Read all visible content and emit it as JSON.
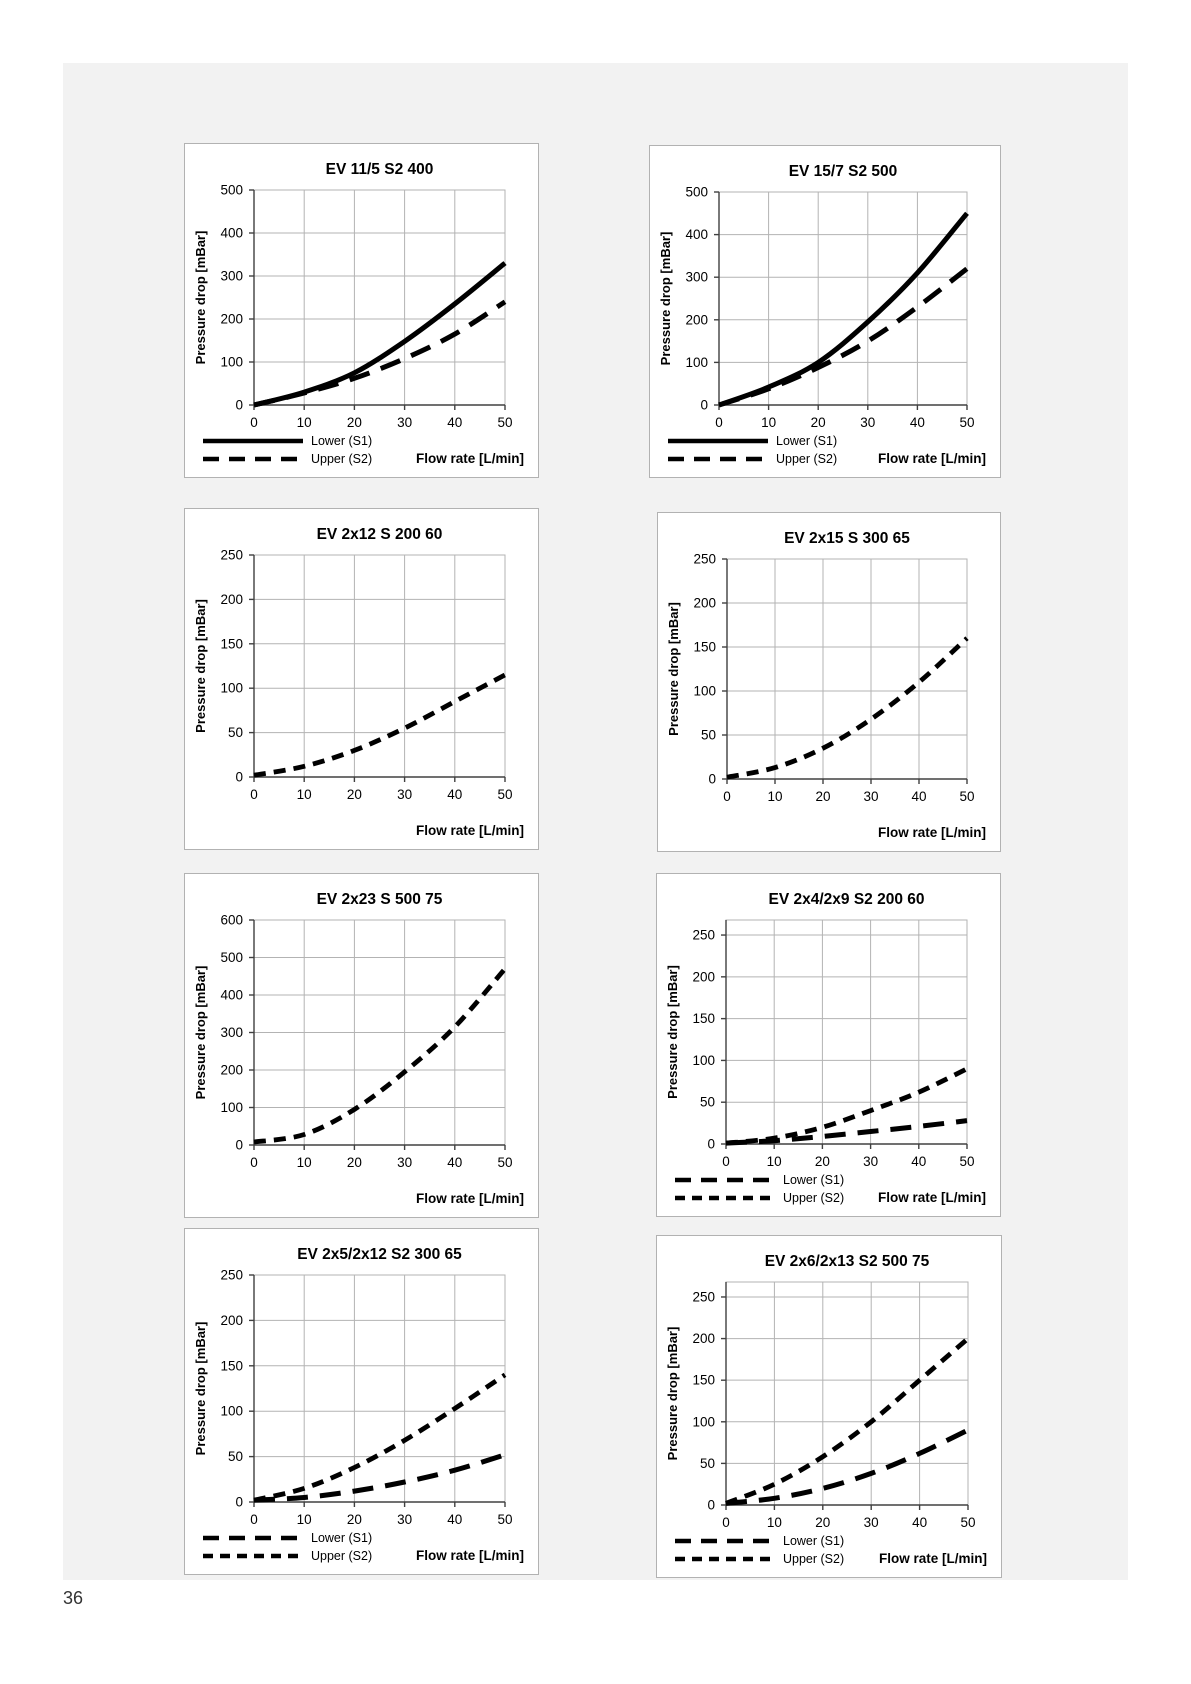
{
  "page": {
    "number": "36"
  },
  "style": {
    "curve_color": "#000000",
    "grid_color": "#b3b3b3",
    "axis_color": "#404040",
    "panel_bg": "#f2f2f2"
  },
  "chart_data": [
    {
      "type": "line",
      "title": "EV 11/5 S2 400",
      "xlabel": "Flow rate [L/min]",
      "ylabel": "Pressure drop [mBar]",
      "xlim": [
        0,
        50
      ],
      "ylim": [
        0,
        500
      ],
      "xticks": [
        0,
        10,
        20,
        30,
        40,
        50
      ],
      "yticks": [
        0,
        100,
        200,
        300,
        400,
        500
      ],
      "grid": true,
      "legend": true,
      "legend_position": "bottom-left",
      "x": [
        0,
        10,
        20,
        30,
        40,
        50
      ],
      "series": [
        {
          "name": "Lower (S1)",
          "style": "solid",
          "values": [
            0,
            30,
            75,
            148,
            235,
            330
          ]
        },
        {
          "name": "Upper (S2)",
          "style": "longdash",
          "values": [
            0,
            28,
            62,
            108,
            165,
            240
          ]
        }
      ]
    },
    {
      "type": "line",
      "title": "EV 15/7 S2 500",
      "xlabel": "Flow rate [L/min]",
      "ylabel": "Pressure drop [mBar]",
      "xlim": [
        0,
        50
      ],
      "ylim": [
        0,
        500
      ],
      "xticks": [
        0,
        10,
        20,
        30,
        40,
        50
      ],
      "yticks": [
        0,
        100,
        200,
        300,
        400,
        500
      ],
      "grid": true,
      "legend": true,
      "legend_position": "bottom-left",
      "x": [
        0,
        10,
        20,
        30,
        40,
        50
      ],
      "series": [
        {
          "name": "Lower (S1)",
          "style": "solid",
          "values": [
            0,
            42,
            100,
            195,
            310,
            450
          ]
        },
        {
          "name": "Upper (S2)",
          "style": "longdash",
          "values": [
            0,
            38,
            88,
            150,
            230,
            320
          ]
        }
      ]
    },
    {
      "type": "line",
      "title": "EV 2x12 S 200 60",
      "xlabel": "Flow rate [L/min]",
      "ylabel": "Pressure drop [mBar]",
      "xlim": [
        0,
        50
      ],
      "ylim": [
        0,
        250
      ],
      "xticks": [
        0,
        10,
        20,
        30,
        40,
        50
      ],
      "yticks": [
        0,
        50,
        100,
        150,
        200,
        250
      ],
      "grid": true,
      "legend": false,
      "x": [
        0,
        10,
        20,
        30,
        40,
        50
      ],
      "series": [
        {
          "name": "",
          "style": "dash",
          "values": [
            2,
            12,
            30,
            55,
            85,
            115
          ]
        }
      ]
    },
    {
      "type": "line",
      "title": "EV 2x15 S 300 65",
      "xlabel": "Flow rate [L/min]",
      "ylabel": "Pressure drop [mBar]",
      "xlim": [
        0,
        50
      ],
      "ylim": [
        0,
        250
      ],
      "xticks": [
        0,
        10,
        20,
        30,
        40,
        50
      ],
      "yticks": [
        0,
        50,
        100,
        150,
        200,
        250
      ],
      "grid": true,
      "legend": false,
      "x": [
        0,
        10,
        20,
        30,
        40,
        50
      ],
      "series": [
        {
          "name": "",
          "style": "dash",
          "values": [
            2,
            13,
            35,
            68,
            110,
            160
          ]
        }
      ]
    },
    {
      "type": "line",
      "title": "EV 2x23 S 500 75",
      "xlabel": "Flow rate [L/min]",
      "ylabel": "Pressure drop [mBar]",
      "xlim": [
        0,
        50
      ],
      "ylim": [
        0,
        600
      ],
      "xticks": [
        0,
        10,
        20,
        30,
        40,
        50
      ],
      "yticks": [
        0,
        100,
        200,
        300,
        400,
        500,
        600
      ],
      "grid": true,
      "legend": false,
      "x": [
        0,
        10,
        20,
        30,
        40,
        50
      ],
      "series": [
        {
          "name": "",
          "style": "dash",
          "values": [
            8,
            28,
            95,
            195,
            315,
            470
          ]
        }
      ]
    },
    {
      "type": "line",
      "title": "EV 2x4/2x9 S2 200 60",
      "xlabel": "Flow rate [L/min]",
      "ylabel": "Pressure drop [mBar]",
      "xlim": [
        0,
        50
      ],
      "ylim": [
        0,
        268
      ],
      "xticks": [
        0,
        10,
        20,
        30,
        40,
        50
      ],
      "yticks": [
        0,
        50,
        100,
        150,
        200,
        250
      ],
      "grid": true,
      "legend": true,
      "legend_position": "bottom-left",
      "x": [
        0,
        10,
        20,
        30,
        40,
        50
      ],
      "series": [
        {
          "name": "Lower (S1)",
          "style": "longdash",
          "values": [
            1,
            4,
            9,
            15,
            21,
            28
          ]
        },
        {
          "name": "Upper (S2)",
          "style": "dash",
          "values": [
            1,
            7,
            20,
            40,
            62,
            90
          ]
        }
      ]
    },
    {
      "type": "line",
      "title": "EV 2x5/2x12 S2 300 65",
      "xlabel": "Flow rate [L/min]",
      "ylabel": "Pressure drop [mBar]",
      "xlim": [
        0,
        50
      ],
      "ylim": [
        0,
        250
      ],
      "xticks": [
        0,
        10,
        20,
        30,
        40,
        50
      ],
      "yticks": [
        0,
        50,
        100,
        150,
        200,
        250
      ],
      "grid": true,
      "legend": true,
      "legend_position": "bottom-left",
      "x": [
        0,
        10,
        20,
        30,
        40,
        50
      ],
      "series": [
        {
          "name": "Lower (S1)",
          "style": "longdash",
          "values": [
            2,
            5,
            12,
            22,
            35,
            52
          ]
        },
        {
          "name": "Upper (S2)",
          "style": "dash",
          "values": [
            2,
            15,
            38,
            68,
            103,
            140
          ]
        }
      ]
    },
    {
      "type": "line",
      "title": "EV 2x6/2x13 S2 500 75",
      "xlabel": "Flow rate [L/min]",
      "ylabel": "Pressure drop [mBar]",
      "xlim": [
        0,
        50
      ],
      "ylim": [
        0,
        268
      ],
      "xticks": [
        0,
        10,
        20,
        30,
        40,
        50
      ],
      "yticks": [
        0,
        50,
        100,
        150,
        200,
        250
      ],
      "grid": true,
      "legend": true,
      "legend_position": "bottom-left",
      "x": [
        0,
        10,
        20,
        30,
        40,
        50
      ],
      "series": [
        {
          "name": "Lower (S1)",
          "style": "longdash",
          "values": [
            2,
            8,
            20,
            38,
            62,
            90
          ]
        },
        {
          "name": "Upper (S2)",
          "style": "dash",
          "values": [
            2,
            25,
            58,
            100,
            150,
            200
          ]
        }
      ]
    }
  ]
}
